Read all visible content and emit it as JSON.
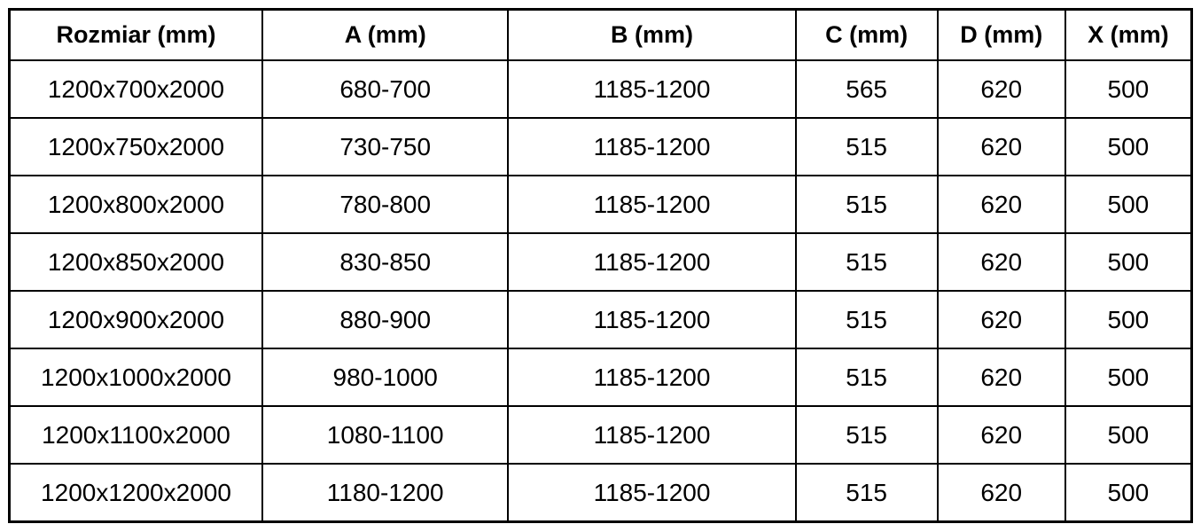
{
  "colors": {
    "background": "#ffffff",
    "border": "#000000",
    "text": "#000000"
  },
  "table": {
    "headers": [
      "Rozmiar (mm)",
      "A (mm)",
      "B (mm)",
      "C (mm)",
      "D (mm)",
      "X (mm)"
    ],
    "rows": [
      [
        "1200x700x2000",
        "680-700",
        "1185-1200",
        "565",
        "620",
        "500"
      ],
      [
        "1200x750x2000",
        "730-750",
        "1185-1200",
        "515",
        "620",
        "500"
      ],
      [
        "1200x800x2000",
        "780-800",
        "1185-1200",
        "515",
        "620",
        "500"
      ],
      [
        "1200x850x2000",
        "830-850",
        "1185-1200",
        "515",
        "620",
        "500"
      ],
      [
        "1200x900x2000",
        "880-900",
        "1185-1200",
        "515",
        "620",
        "500"
      ],
      [
        "1200x1000x2000",
        "980-1000",
        "1185-1200",
        "515",
        "620",
        "500"
      ],
      [
        "1200x1100x2000",
        "1080-1100",
        "1185-1200",
        "515",
        "620",
        "500"
      ],
      [
        "1200x1200x2000",
        "1180-1200",
        "1185-1200",
        "515",
        "620",
        "500"
      ]
    ]
  }
}
